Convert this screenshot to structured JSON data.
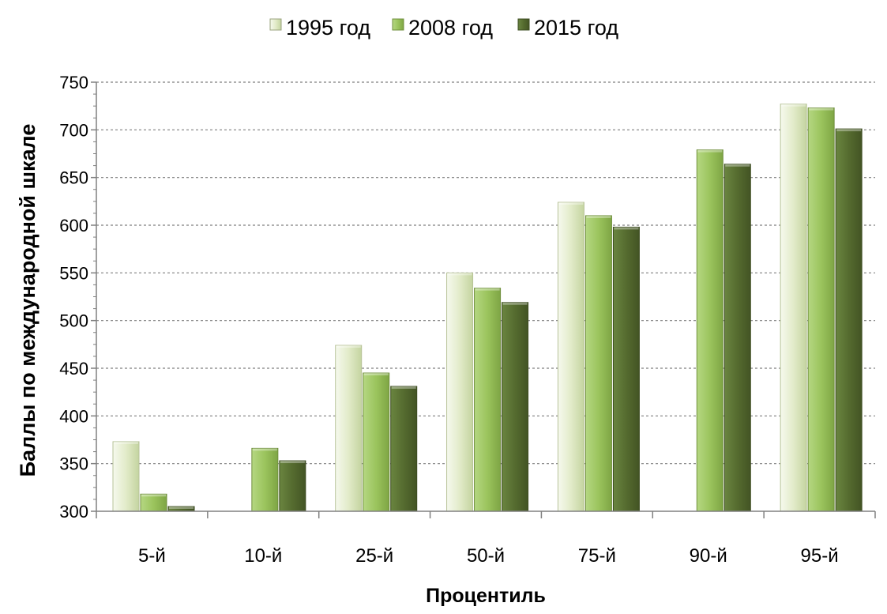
{
  "chart_data": {
    "type": "bar",
    "title": "",
    "xlabel": "Процентиль",
    "ylabel": "Баллы по международной  шкале",
    "categories": [
      "5-й",
      "10-й",
      "25-й",
      "50-й",
      "75-й",
      "90-й",
      "95-й"
    ],
    "series": [
      {
        "name": "1995 год",
        "values": [
          373,
          null,
          474,
          550,
          624,
          null,
          727
        ],
        "color": "#e2ebc9"
      },
      {
        "name": "2008 год",
        "values": [
          318,
          366,
          445,
          534,
          610,
          679,
          723
        ],
        "color": "#9bc45d"
      },
      {
        "name": "2015 год",
        "values": [
          305,
          353,
          431,
          519,
          598,
          664,
          701
        ],
        "color": "#556b2f"
      }
    ],
    "ylim": [
      300,
      750
    ],
    "yticks": [
      300,
      350,
      400,
      450,
      500,
      550,
      600,
      650,
      700,
      750
    ],
    "grid": true,
    "legend": "top-center"
  }
}
